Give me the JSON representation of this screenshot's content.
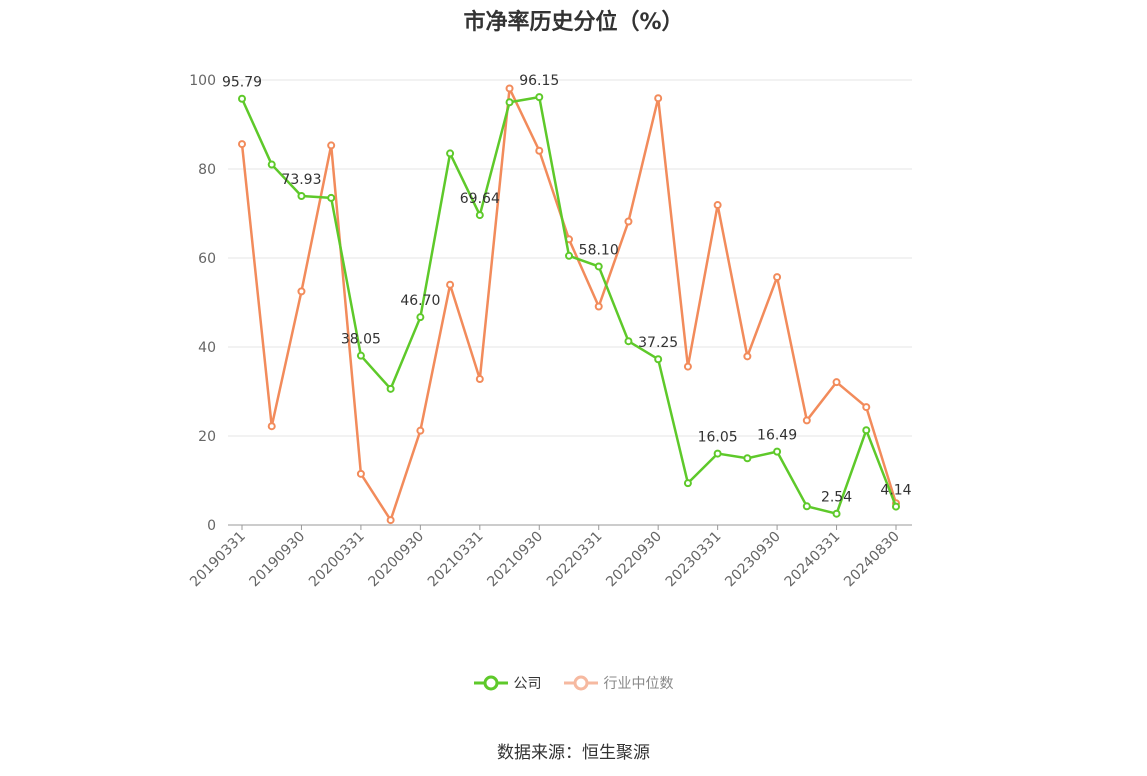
{
  "chart_data": {
    "type": "line",
    "title": "市净率历史分位（%）",
    "source": "数据来源：恒生聚源",
    "ylim": [
      0,
      100
    ],
    "yticks": [
      0,
      20,
      40,
      60,
      80,
      100
    ],
    "x_tick_labels": [
      "20190331",
      "20190930",
      "20200331",
      "20200930",
      "20210331",
      "20210930",
      "20220331",
      "20220930",
      "20230331",
      "20230930",
      "20240331",
      "20240830"
    ],
    "x": [
      "20190331",
      "20190630",
      "20190930",
      "20191231",
      "20200331",
      "20200630",
      "20200930",
      "20201231",
      "20210331",
      "20210630",
      "20210930",
      "20211231",
      "20220331",
      "20220630",
      "20220930",
      "20221231",
      "20230331",
      "20230630",
      "20230930",
      "20231231",
      "20240331",
      "20240630",
      "20240830"
    ],
    "grid": true,
    "legend_placement": "bottom",
    "series": [
      {
        "name": "公司",
        "color": "#5ec92a",
        "values": [
          95.79,
          81.0,
          73.93,
          73.5,
          38.05,
          30.6,
          46.7,
          83.5,
          69.64,
          95.0,
          96.15,
          60.5,
          58.1,
          41.3,
          37.25,
          9.4,
          16.05,
          15.0,
          16.49,
          4.2,
          2.54,
          21.3,
          4.14
        ],
        "labeled": [
          "95.79",
          null,
          "73.93",
          null,
          "38.05",
          null,
          "46.70",
          null,
          "69.64",
          null,
          "96.15",
          null,
          "58.10",
          null,
          "37.25",
          null,
          "16.05",
          null,
          "16.49",
          null,
          "2.54",
          null,
          "4.14"
        ]
      },
      {
        "name": "行业中位数",
        "color": "#f28b5b",
        "values": [
          85.6,
          22.2,
          52.5,
          85.3,
          11.5,
          1.1,
          21.2,
          54.0,
          32.8,
          98.1,
          84.1,
          64.2,
          49.1,
          68.2,
          95.9,
          35.6,
          71.9,
          37.9,
          55.7,
          23.5,
          32.1,
          26.5,
          4.9
        ]
      }
    ]
  }
}
